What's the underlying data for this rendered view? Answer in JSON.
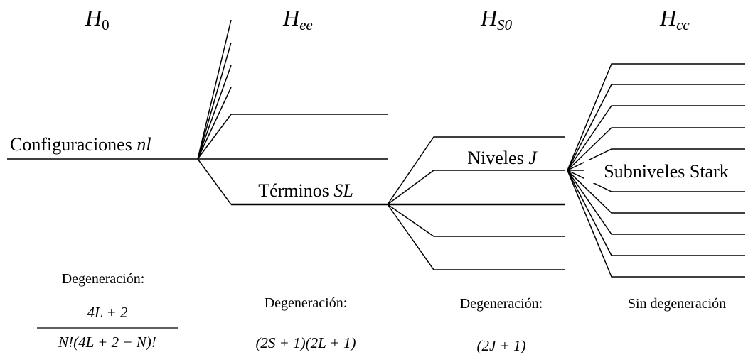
{
  "columns": [
    {
      "symbol": "H",
      "subscript": "0",
      "level_label": "Configuraciones",
      "level_symbol": "nl",
      "degeneracy_label": "Degeneración:",
      "degeneracy_numerator": "4L + 2",
      "degeneracy_denominator": "N!(4L + 2 − N)!"
    },
    {
      "symbol": "H",
      "subscript": "ee",
      "level_label": "Términos",
      "level_symbol": "SL",
      "degeneracy_label": "Degeneración:",
      "degeneracy_formula": "(2S + 1)(2L + 1)"
    },
    {
      "symbol": "H",
      "subscript": "S0",
      "level_label": "Niveles",
      "level_symbol": "J",
      "degeneracy_label": "Degeneración:",
      "degeneracy_formula": "(2J + 1)"
    },
    {
      "symbol": "H",
      "subscript": "cc",
      "level_label": "Subniveles Stark",
      "degeneracy_label": "Sin degeneración"
    }
  ]
}
